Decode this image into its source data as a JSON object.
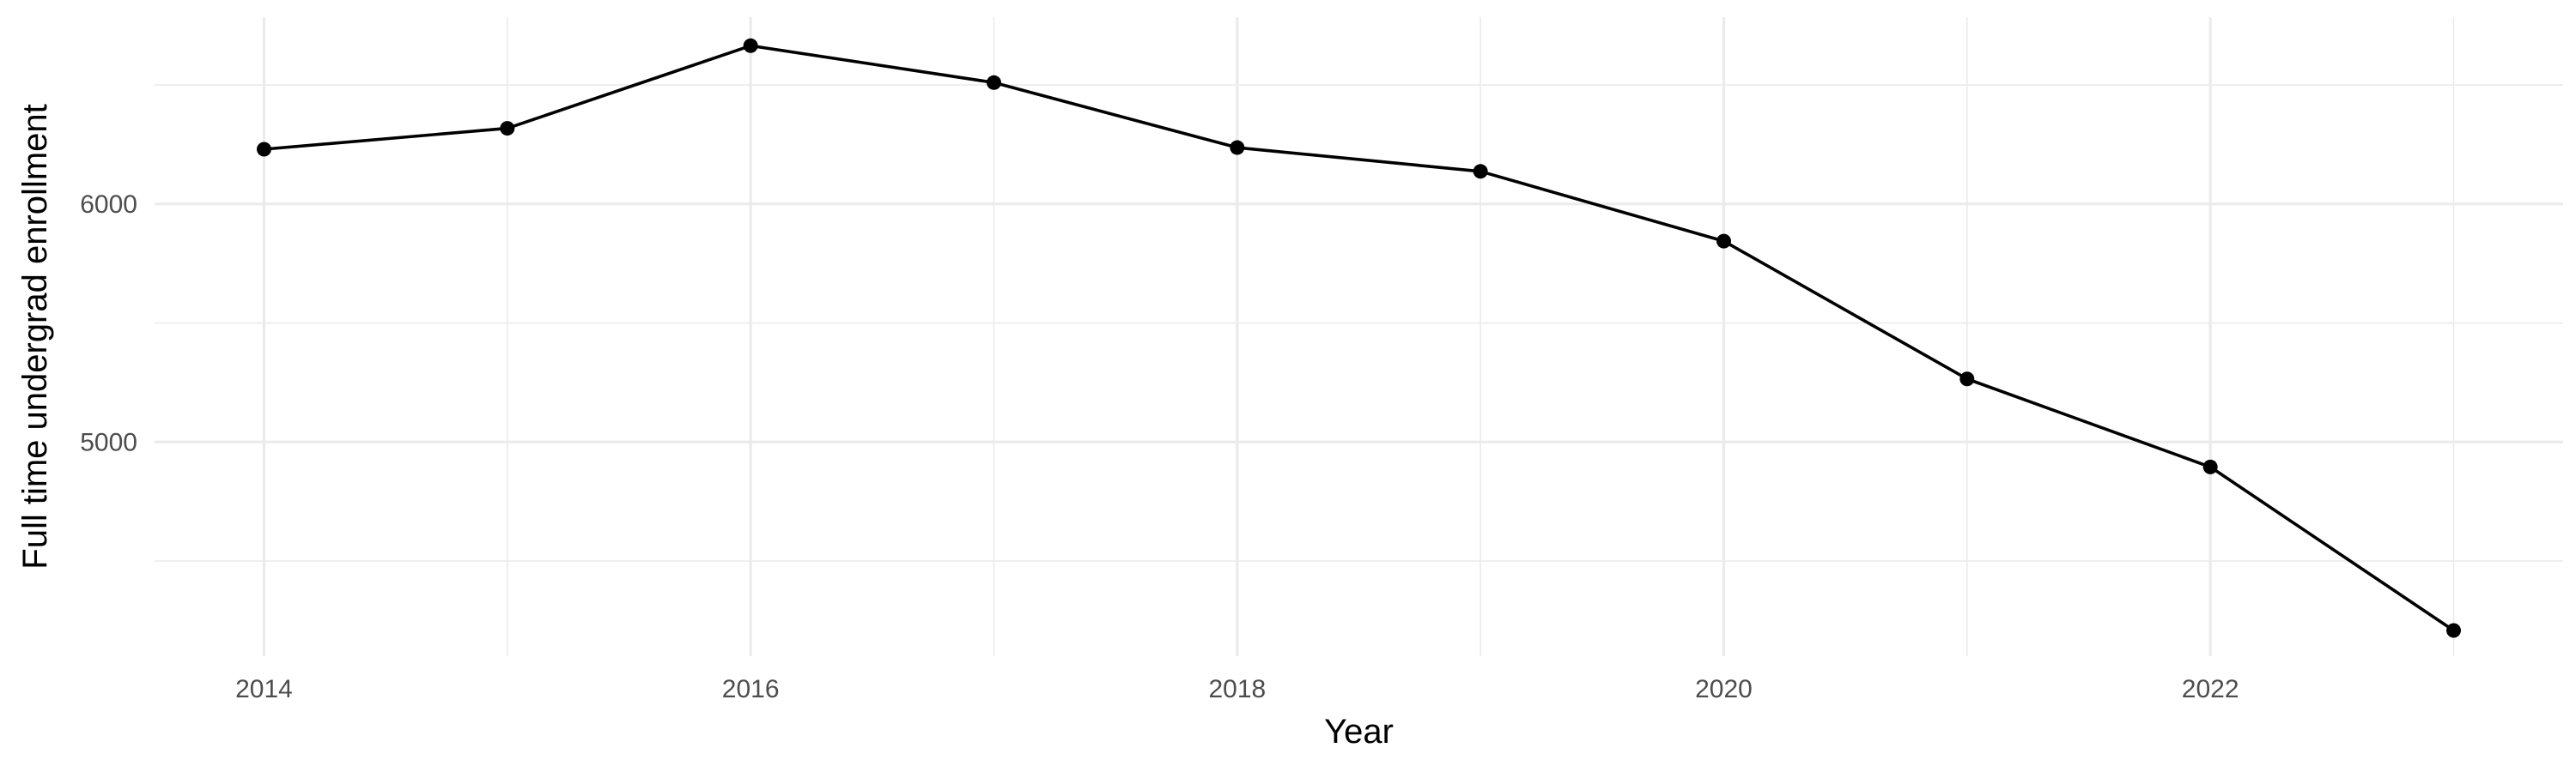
{
  "chart_data": {
    "type": "line",
    "title": "",
    "xlabel": "Year",
    "ylabel": "Full time undergrad enrollment",
    "x": [
      2014,
      2015,
      2016,
      2017,
      2018,
      2019,
      2020,
      2021,
      2022,
      2023
    ],
    "series": [
      {
        "values": [
          6230,
          6318,
          6665,
          6510,
          6237,
          6137,
          5844,
          5265,
          4895,
          4208
        ]
      }
    ],
    "xlim": [
      2013.55,
      2023.45
    ],
    "ylim": [
      4100,
      6785
    ],
    "x_ticks": [
      2014,
      2016,
      2018,
      2020,
      2022
    ],
    "x_tick_labels": [
      "2014",
      "2016",
      "2018",
      "2020",
      "2022"
    ],
    "x_minor_ticks": [
      2015,
      2017,
      2019,
      2021,
      2023
    ],
    "y_ticks": [
      5000,
      6000
    ],
    "y_tick_labels": [
      "5000",
      "6000"
    ],
    "y_minor_ticks": [
      4500,
      5500,
      6500
    ],
    "grid": true,
    "legend": "none",
    "colors": {
      "line": "#000000",
      "point": "#000000",
      "grid": "#ebebeb",
      "tick_text": "#4d4d4d",
      "axis_title": "#000000",
      "background": "#ffffff"
    }
  }
}
